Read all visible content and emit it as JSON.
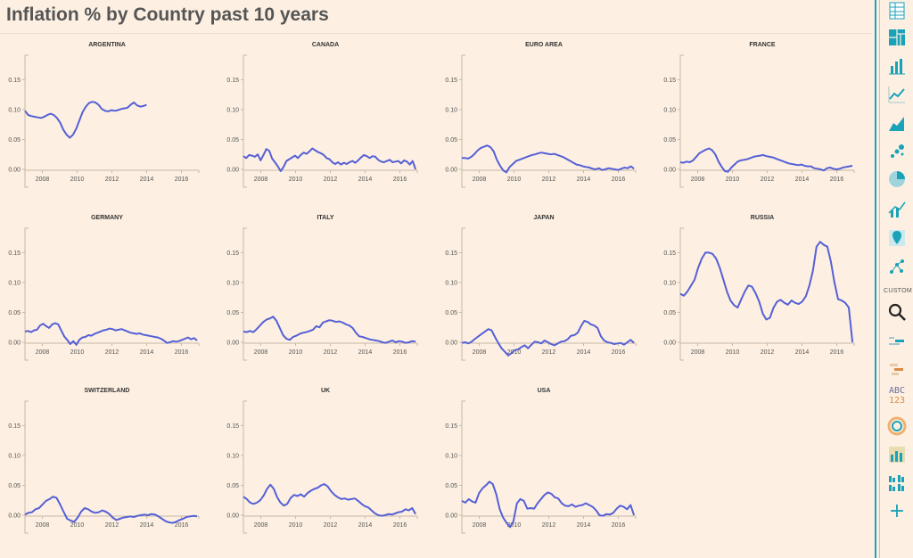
{
  "page": {
    "title": "Inflation % by Country past 10 years"
  },
  "sidebar": {
    "custom_label": "CUSTOM",
    "abc_line1": "ABC",
    "abc_line2": "123",
    "add_label": "+",
    "accent_color": "#1aa2b8",
    "tools": [
      {
        "name": "table-icon"
      },
      {
        "name": "treemap-icon"
      },
      {
        "name": "bar-chart-icon"
      },
      {
        "name": "line-chart-icon"
      },
      {
        "name": "area-chart-icon"
      },
      {
        "name": "scatter-icon"
      },
      {
        "name": "pie-chart-icon"
      },
      {
        "name": "combo-chart-icon"
      },
      {
        "name": "map-pin-icon"
      },
      {
        "name": "network-icon"
      },
      {
        "name": "search-icon"
      },
      {
        "name": "word-cloud-icon"
      },
      {
        "name": "gantt-icon"
      },
      {
        "name": "text-number-icon"
      },
      {
        "name": "sunburst-icon"
      },
      {
        "name": "grid-bars-icon"
      },
      {
        "name": "small-multiples-icon"
      },
      {
        "name": "add-icon"
      }
    ]
  },
  "chart_data": [
    {
      "title": "ARGENTINA",
      "type": "line",
      "x_start": 2007.0,
      "x_end": 2014.0,
      "xlim": [
        2007,
        2017
      ],
      "ylim": [
        0,
        0.17
      ],
      "x_ticks": [
        "2008",
        "2010",
        "2012",
        "2014",
        "2016"
      ],
      "y_ticks": [
        "0.00",
        "0.05",
        "0.10",
        "0.15"
      ],
      "series_color": "#5560d6",
      "values": [
        0.098,
        0.091,
        0.089,
        0.088,
        0.087,
        0.086,
        0.088,
        0.091,
        0.093,
        0.091,
        0.086,
        0.078,
        0.066,
        0.058,
        0.053,
        0.058,
        0.068,
        0.082,
        0.096,
        0.105,
        0.111,
        0.113,
        0.112,
        0.108,
        0.101,
        0.098,
        0.097,
        0.099,
        0.098,
        0.099,
        0.101,
        0.102,
        0.103,
        0.108,
        0.112,
        0.107,
        0.105,
        0.106,
        0.108
      ]
    },
    {
      "title": "CANADA",
      "type": "line",
      "x_start": 2007.0,
      "x_end": 2016.9,
      "xlim": [
        2007,
        2017
      ],
      "ylim": [
        0,
        0.17
      ],
      "x_ticks": [
        "2008",
        "2010",
        "2012",
        "2014",
        "2016"
      ],
      "y_ticks": [
        "0.00",
        "0.05",
        "0.10",
        "0.15"
      ],
      "series_color": "#5560d6",
      "values": [
        0.022,
        0.019,
        0.024,
        0.023,
        0.021,
        0.025,
        0.015,
        0.024,
        0.034,
        0.031,
        0.018,
        0.012,
        0.005,
        -0.003,
        0.004,
        0.014,
        0.017,
        0.02,
        0.023,
        0.019,
        0.024,
        0.028,
        0.026,
        0.03,
        0.035,
        0.032,
        0.029,
        0.027,
        0.024,
        0.019,
        0.017,
        0.012,
        0.009,
        0.012,
        0.008,
        0.011,
        0.009,
        0.012,
        0.014,
        0.011,
        0.015,
        0.02,
        0.024,
        0.022,
        0.019,
        0.022,
        0.021,
        0.016,
        0.013,
        0.012,
        0.014,
        0.016,
        0.012,
        0.013,
        0.014,
        0.01,
        0.015,
        0.013,
        0.008,
        0.014,
        0.0
      ]
    },
    {
      "title": "EURO AREA",
      "type": "line",
      "x_start": 2007.0,
      "x_end": 2016.9,
      "xlim": [
        2007,
        2017
      ],
      "ylim": [
        0,
        0.17
      ],
      "x_ticks": [
        "2008",
        "2010",
        "2012",
        "2014",
        "2016"
      ],
      "y_ticks": [
        "0.00",
        "0.05",
        "0.10",
        "0.15"
      ],
      "series_color": "#5560d6",
      "values": [
        0.019,
        0.019,
        0.018,
        0.021,
        0.026,
        0.032,
        0.036,
        0.038,
        0.04,
        0.037,
        0.03,
        0.016,
        0.006,
        -0.002,
        -0.005,
        0.004,
        0.009,
        0.014,
        0.016,
        0.018,
        0.02,
        0.022,
        0.024,
        0.025,
        0.027,
        0.028,
        0.027,
        0.026,
        0.025,
        0.026,
        0.024,
        0.022,
        0.02,
        0.017,
        0.014,
        0.011,
        0.008,
        0.007,
        0.005,
        0.004,
        0.003,
        0.001,
        0.0,
        0.002,
        -0.001,
        0.0,
        0.002,
        0.001,
        0.0,
        -0.001,
        0.001,
        0.003,
        0.002,
        0.005,
        0.001
      ]
    },
    {
      "title": "FRANCE",
      "type": "line",
      "x_start": 2007.0,
      "x_end": 2016.9,
      "xlim": [
        2007,
        2017
      ],
      "ylim": [
        0,
        0.17
      ],
      "x_ticks": [
        "2008",
        "2010",
        "2012",
        "2014",
        "2016"
      ],
      "y_ticks": [
        "0.00",
        "0.05",
        "0.10",
        "0.15"
      ],
      "series_color": "#5560d6",
      "values": [
        0.012,
        0.011,
        0.013,
        0.012,
        0.015,
        0.021,
        0.027,
        0.03,
        0.033,
        0.035,
        0.032,
        0.025,
        0.013,
        0.004,
        -0.003,
        -0.004,
        0.003,
        0.008,
        0.013,
        0.015,
        0.016,
        0.017,
        0.019,
        0.021,
        0.022,
        0.023,
        0.024,
        0.022,
        0.021,
        0.02,
        0.018,
        0.016,
        0.014,
        0.012,
        0.01,
        0.009,
        0.008,
        0.007,
        0.008,
        0.006,
        0.005,
        0.005,
        0.002,
        0.001,
        0.0,
        -0.002,
        0.002,
        0.003,
        0.001,
        0.0,
        0.001,
        0.003,
        0.004,
        0.005,
        0.006
      ]
    },
    {
      "title": "GERMANY",
      "type": "line",
      "x_start": 2007.0,
      "x_end": 2016.9,
      "xlim": [
        2007,
        2017
      ],
      "ylim": [
        0,
        0.17
      ],
      "x_ticks": [
        "2008",
        "2010",
        "2012",
        "2014",
        "2016"
      ],
      "y_ticks": [
        "0.00",
        "0.05",
        "0.10",
        "0.15"
      ],
      "series_color": "#5560d6",
      "values": [
        0.018,
        0.019,
        0.017,
        0.02,
        0.021,
        0.028,
        0.031,
        0.027,
        0.024,
        0.03,
        0.032,
        0.03,
        0.02,
        0.01,
        0.004,
        -0.003,
        0.002,
        -0.004,
        0.004,
        0.008,
        0.009,
        0.012,
        0.011,
        0.014,
        0.016,
        0.018,
        0.02,
        0.021,
        0.023,
        0.022,
        0.02,
        0.021,
        0.022,
        0.02,
        0.018,
        0.016,
        0.015,
        0.014,
        0.015,
        0.013,
        0.012,
        0.011,
        0.01,
        0.009,
        0.008,
        0.006,
        0.003,
        -0.001,
        0.0,
        0.002,
        0.001,
        0.002,
        0.004,
        0.006,
        0.008,
        0.005,
        0.007,
        0.003
      ]
    },
    {
      "title": "ITALY",
      "type": "line",
      "x_start": 2007.0,
      "x_end": 2016.9,
      "xlim": [
        2007,
        2017
      ],
      "ylim": [
        0,
        0.17
      ],
      "x_ticks": [
        "2008",
        "2010",
        "2012",
        "2014",
        "2016"
      ],
      "y_ticks": [
        "0.00",
        "0.05",
        "0.10",
        "0.15"
      ],
      "series_color": "#5560d6",
      "values": [
        0.018,
        0.017,
        0.019,
        0.017,
        0.022,
        0.028,
        0.034,
        0.038,
        0.04,
        0.043,
        0.036,
        0.024,
        0.012,
        0.006,
        0.004,
        0.009,
        0.011,
        0.014,
        0.016,
        0.017,
        0.019,
        0.021,
        0.027,
        0.025,
        0.033,
        0.035,
        0.037,
        0.036,
        0.034,
        0.035,
        0.033,
        0.03,
        0.028,
        0.024,
        0.016,
        0.01,
        0.009,
        0.007,
        0.005,
        0.004,
        0.003,
        0.002,
        0.0,
        -0.001,
        0.001,
        0.003,
        0.0,
        0.002,
        0.001,
        -0.001,
        0.0,
        0.002,
        0.001
      ]
    },
    {
      "title": "JAPAN",
      "type": "line",
      "x_start": 2007.0,
      "x_end": 2016.9,
      "xlim": [
        2007,
        2017
      ],
      "ylim": [
        0,
        0.17
      ],
      "x_ticks": [
        "2008",
        "2010",
        "2012",
        "2014",
        "2016"
      ],
      "y_ticks": [
        "0.00",
        "0.05",
        "0.10",
        "0.15"
      ],
      "series_color": "#5560d6",
      "values": [
        -0.001,
        0.0,
        -0.002,
        0.001,
        0.006,
        0.01,
        0.014,
        0.018,
        0.022,
        0.02,
        0.009,
        -0.001,
        -0.01,
        -0.016,
        -0.022,
        -0.018,
        -0.013,
        -0.012,
        -0.008,
        -0.005,
        -0.01,
        -0.004,
        0.001,
        0.0,
        -0.002,
        0.003,
        0.0,
        -0.003,
        -0.005,
        -0.002,
        0.001,
        0.002,
        0.005,
        0.011,
        0.012,
        0.016,
        0.027,
        0.036,
        0.034,
        0.03,
        0.028,
        0.024,
        0.01,
        0.003,
        0.0,
        -0.001,
        -0.003,
        -0.002,
        -0.001,
        -0.004,
        0.0,
        0.004,
        -0.001
      ]
    },
    {
      "title": "RUSSIA",
      "type": "line",
      "x_start": 2007.0,
      "x_end": 2016.9,
      "xlim": [
        2007,
        2017
      ],
      "ylim": [
        0,
        0.17
      ],
      "x_ticks": [
        "2008",
        "2010",
        "2012",
        "2014",
        "2016"
      ],
      "y_ticks": [
        "0.00",
        "0.05",
        "0.10",
        "0.15"
      ],
      "series_color": "#5560d6",
      "values": [
        0.081,
        0.078,
        0.085,
        0.095,
        0.105,
        0.125,
        0.14,
        0.15,
        0.15,
        0.148,
        0.14,
        0.125,
        0.105,
        0.085,
        0.07,
        0.062,
        0.058,
        0.072,
        0.085,
        0.095,
        0.093,
        0.082,
        0.068,
        0.048,
        0.038,
        0.041,
        0.058,
        0.068,
        0.071,
        0.066,
        0.063,
        0.07,
        0.066,
        0.064,
        0.068,
        0.077,
        0.095,
        0.12,
        0.16,
        0.168,
        0.163,
        0.16,
        0.135,
        0.1,
        0.072,
        0.07,
        0.066,
        0.058,
        0.0
      ]
    },
    {
      "title": "SWITZERLAND",
      "type": "line",
      "x_start": 2007.0,
      "x_end": 2016.9,
      "xlim": [
        2007,
        2017
      ],
      "ylim": [
        0,
        0.17
      ],
      "x_ticks": [
        "2008",
        "2010",
        "2012",
        "2014",
        "2016"
      ],
      "y_ticks": [
        "0.00",
        "0.05",
        "0.10",
        "0.15"
      ],
      "series_color": "#5560d6",
      "values": [
        0.001,
        0.004,
        0.005,
        0.01,
        0.012,
        0.018,
        0.024,
        0.027,
        0.031,
        0.029,
        0.018,
        0.006,
        -0.006,
        -0.009,
        -0.011,
        -0.004,
        0.006,
        0.012,
        0.01,
        0.006,
        0.004,
        0.005,
        0.008,
        0.006,
        0.002,
        -0.004,
        -0.008,
        -0.006,
        -0.004,
        -0.003,
        -0.002,
        -0.003,
        -0.001,
        0.0,
        0.001,
        0.0,
        0.002,
        0.001,
        -0.002,
        -0.006,
        -0.01,
        -0.012,
        -0.013,
        -0.011,
        -0.008,
        -0.006,
        -0.003,
        -0.002,
        -0.001,
        -0.002
      ]
    },
    {
      "title": "UK",
      "type": "line",
      "x_start": 2007.0,
      "x_end": 2016.9,
      "xlim": [
        2007,
        2017
      ],
      "ylim": [
        0,
        0.17
      ],
      "x_ticks": [
        "2008",
        "2010",
        "2012",
        "2014",
        "2016"
      ],
      "y_ticks": [
        "0.00",
        "0.05",
        "0.10",
        "0.15"
      ],
      "series_color": "#5560d6",
      "values": [
        0.031,
        0.027,
        0.021,
        0.019,
        0.021,
        0.025,
        0.033,
        0.044,
        0.051,
        0.044,
        0.03,
        0.021,
        0.016,
        0.019,
        0.029,
        0.034,
        0.032,
        0.035,
        0.031,
        0.037,
        0.041,
        0.044,
        0.046,
        0.05,
        0.052,
        0.048,
        0.04,
        0.034,
        0.03,
        0.027,
        0.028,
        0.026,
        0.027,
        0.028,
        0.024,
        0.019,
        0.015,
        0.013,
        0.008,
        0.003,
        0.0,
        -0.001,
        0.0,
        0.002,
        0.001,
        0.003,
        0.005,
        0.006,
        0.01,
        0.008,
        0.012,
        0.002
      ]
    },
    {
      "title": "USA",
      "type": "line",
      "x_start": 2007.0,
      "x_end": 2016.9,
      "xlim": [
        2007,
        2017
      ],
      "ylim": [
        0,
        0.17
      ],
      "x_ticks": [
        "2008",
        "2010",
        "2012",
        "2014",
        "2016"
      ],
      "y_ticks": [
        "0.00",
        "0.05",
        "0.10",
        "0.15"
      ],
      "series_color": "#5560d6",
      "values": [
        0.024,
        0.021,
        0.027,
        0.023,
        0.021,
        0.037,
        0.045,
        0.05,
        0.056,
        0.052,
        0.035,
        0.01,
        -0.004,
        -0.013,
        -0.02,
        -0.01,
        0.02,
        0.027,
        0.024,
        0.011,
        0.012,
        0.011,
        0.02,
        0.027,
        0.034,
        0.038,
        0.036,
        0.03,
        0.028,
        0.02,
        0.016,
        0.015,
        0.018,
        0.014,
        0.016,
        0.017,
        0.02,
        0.017,
        0.014,
        0.008,
        0.0,
        -0.001,
        0.002,
        0.001,
        0.004,
        0.011,
        0.016,
        0.014,
        0.01,
        0.017,
        0.0
      ]
    }
  ]
}
